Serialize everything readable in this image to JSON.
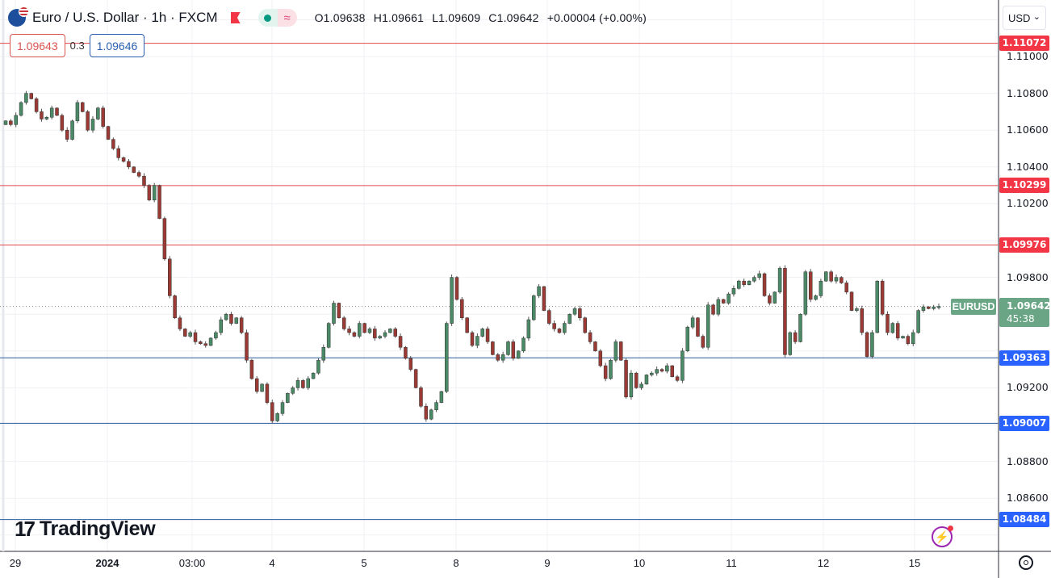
{
  "header": {
    "title": "Euro / U.S. Dollar · 1h · FXCM",
    "ohlc": {
      "open": "O1.09638",
      "high": "H1.09661",
      "low": "L1.09609",
      "close": "C1.09642",
      "change": "+0.00004 (+0.00%)"
    },
    "sell_price": "1.09643",
    "spread": "0.3",
    "buy_price": "1.09646",
    "currency": "USD",
    "currency_chevron": "⌄"
  },
  "branding": {
    "logo_mark": "17",
    "logo_text": "TradingView"
  },
  "colors": {
    "up": "#4b8a67",
    "down": "#9b3a34",
    "resistance": "#e0474c",
    "support": "#2d5e9a",
    "resistance_label": "#f23645",
    "support_label": "#2962ff",
    "last_price": "#6aa685"
  },
  "chart_data": {
    "type": "candlestick",
    "symbol": "EURUSD",
    "interval": "1h",
    "last_price": "1.09642",
    "countdown": "45:38",
    "ylim": [
      1.0842,
      1.113
    ],
    "grid": true,
    "y_ticks": [
      "1.11000",
      "1.10800",
      "1.10600",
      "1.10400",
      "1.10200",
      "1.09800",
      "1.09200",
      "1.08800",
      "1.08600"
    ],
    "x_ticks": [
      {
        "label": "29",
        "bold": false
      },
      {
        "label": "2024",
        "bold": true
      },
      {
        "label": "03:00",
        "bold": false
      },
      {
        "label": "4",
        "bold": false
      },
      {
        "label": "5",
        "bold": false
      },
      {
        "label": "8",
        "bold": false
      },
      {
        "label": "9",
        "bold": false
      },
      {
        "label": "10",
        "bold": false
      },
      {
        "label": "11",
        "bold": false
      },
      {
        "label": "12",
        "bold": false
      },
      {
        "label": "15",
        "bold": false
      }
    ],
    "horizontal_lines": [
      {
        "price": "1.11072",
        "kind": "resistance"
      },
      {
        "price": "1.10299",
        "kind": "resistance"
      },
      {
        "price": "1.09976",
        "kind": "resistance"
      },
      {
        "price": "1.09363",
        "kind": "support"
      },
      {
        "price": "1.09007",
        "kind": "support"
      },
      {
        "price": "1.08484",
        "kind": "support"
      }
    ],
    "closes": [
      1.1065,
      1.1063,
      1.1068,
      1.1075,
      1.108,
      1.1077,
      1.107,
      1.1066,
      1.1067,
      1.1072,
      1.1068,
      1.106,
      1.1055,
      1.1065,
      1.1075,
      1.107,
      1.106,
      1.1066,
      1.1072,
      1.1062,
      1.1055,
      1.105,
      1.1045,
      1.1043,
      1.104,
      1.1037,
      1.1035,
      1.103,
      1.1022,
      1.103,
      1.1012,
      1.099,
      1.097,
      1.0958,
      1.0952,
      1.0948,
      1.095,
      1.0945,
      1.0944,
      1.0943,
      1.0947,
      1.095,
      1.0957,
      1.096,
      1.0955,
      1.0958,
      1.095,
      1.0935,
      1.0925,
      1.0918,
      1.0922,
      1.0912,
      1.0902,
      1.0906,
      1.0912,
      1.0917,
      1.092,
      1.0924,
      1.092,
      1.0925,
      1.0928,
      1.0935,
      1.0942,
      1.0955,
      1.0966,
      1.0958,
      1.0952,
      1.095,
      1.0948,
      1.0955,
      1.095,
      1.0952,
      1.0947,
      1.0948,
      1.095,
      1.0952,
      1.0948,
      1.0942,
      1.0936,
      1.093,
      1.092,
      1.091,
      1.0903,
      1.0908,
      1.0912,
      1.0918,
      1.0955,
      1.098,
      1.0968,
      1.0958,
      1.095,
      1.0943,
      1.0948,
      1.0952,
      1.0945,
      1.0938,
      1.0935,
      1.0938,
      1.0945,
      1.0936,
      1.094,
      1.0947,
      1.0957,
      1.097,
      1.0975,
      1.0962,
      1.0955,
      1.0952,
      1.095,
      1.0955,
      1.096,
      1.0963,
      1.0958,
      1.095,
      1.0945,
      1.094,
      1.0932,
      1.0925,
      1.0935,
      1.0945,
      1.0935,
      1.0915,
      1.0928,
      1.092,
      1.0922,
      1.0927,
      1.0928,
      1.093,
      1.0929,
      1.0932,
      1.0926,
      1.0924,
      1.094,
      1.0953,
      1.0958,
      1.0948,
      1.0942,
      1.0965,
      1.096,
      1.0968,
      1.0966,
      1.0971,
      1.0974,
      1.0978,
      1.0976,
      1.0978,
      1.098,
      1.0982,
      1.097,
      1.0966,
      1.0972,
      1.0985,
      1.0938,
      1.095,
      1.0945,
      1.096,
      1.0983,
      1.0968,
      1.097,
      1.0978,
      1.0983,
      1.0978,
      1.098,
      1.0977,
      1.0972,
      1.0962,
      1.0963,
      1.095,
      1.0937,
      1.095,
      1.0978,
      1.096,
      1.095,
      1.0955,
      1.0947,
      1.0948,
      1.0944,
      1.095,
      1.0962,
      1.0964,
      1.0963,
      1.0964,
      1.09642
    ]
  }
}
